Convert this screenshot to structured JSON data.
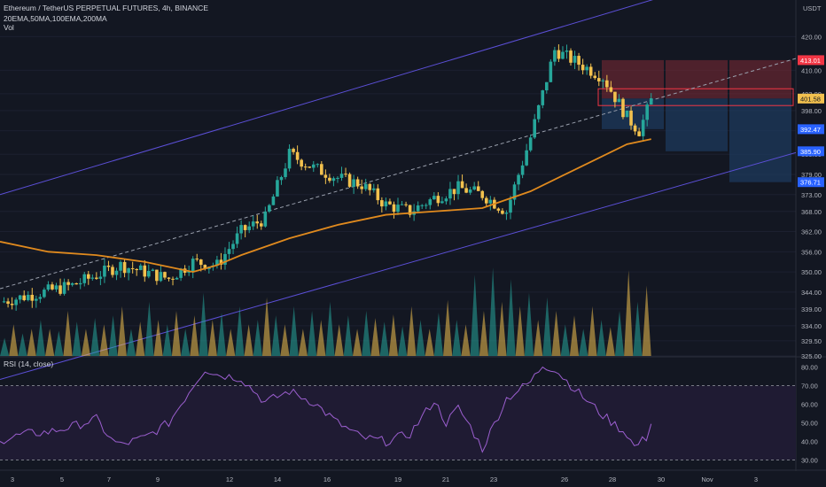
{
  "header": {
    "title": "Ethereum / TetherUS PERPETUAL FUTURES, 4h, BINANCE",
    "indicators": "20EMA,50MA,100EMA,200MA",
    "volume_label": "Vol",
    "currency": "USDT"
  },
  "rsi": {
    "label": "RSI (14, close)",
    "ticks": [
      "80.00",
      "70.00",
      "60.00",
      "50.00",
      "40.00",
      "30.00"
    ],
    "values": [
      80,
      70,
      60,
      50,
      40,
      30
    ],
    "upper": 70,
    "lower": 30
  },
  "colors": {
    "background": "#131722",
    "bull": "#26a69a",
    "bear": "#f2c14e",
    "ma": "#e08a1e",
    "channel": "#5b4fd6",
    "rsi_line": "#9c5fd0",
    "stop_zone": "#7f2a35",
    "target_zone": "#1d3a5c"
  },
  "chart_data": {
    "type": "candlestick",
    "title": "Ethereum / TetherUS PERPETUAL FUTURES, 4h, BINANCE",
    "y_ticks": [
      "420.00",
      "410.00",
      "403.00",
      "398.00",
      "392.00",
      "385.00",
      "379.00",
      "373.00",
      "368.00",
      "362.00",
      "356.00",
      "350.00",
      "344.00",
      "339.00",
      "334.00",
      "329.50",
      "325.00"
    ],
    "y_tick_values": [
      420,
      410,
      403,
      398,
      392,
      385,
      379,
      373,
      368,
      362,
      356,
      350,
      344,
      339,
      334,
      329.5,
      325
    ],
    "x_ticks": [
      "3",
      "5",
      "7",
      "9",
      "12",
      "14",
      "16",
      "19",
      "21",
      "23",
      "26",
      "28",
      "30",
      "Nov",
      "3"
    ],
    "price_labels": [
      {
        "text": "413.01",
        "value": 413.01,
        "color": "#f23645"
      },
      {
        "text": "401.58",
        "value": 401.58,
        "color": "#f2c14e"
      },
      {
        "text": "392.47",
        "value": 392.47,
        "color": "#2962ff"
      },
      {
        "text": "385.90",
        "value": 385.9,
        "color": "#2962ff"
      },
      {
        "text": "376.71",
        "value": 376.71,
        "color": "#2962ff"
      }
    ],
    "price_path": [
      [
        0,
        341
      ],
      [
        3,
        346
      ],
      [
        5,
        352
      ],
      [
        7,
        348
      ],
      [
        8,
        353
      ],
      [
        9,
        352
      ],
      [
        10,
        362
      ],
      [
        11,
        366
      ],
      [
        12,
        385
      ],
      [
        13,
        381
      ],
      [
        14,
        378
      ],
      [
        15,
        376
      ],
      [
        16,
        370
      ],
      [
        17,
        368
      ],
      [
        18,
        372
      ],
      [
        19,
        375
      ],
      [
        20,
        373
      ],
      [
        21,
        368
      ],
      [
        22,
        390
      ],
      [
        23,
        416
      ],
      [
        24,
        412
      ],
      [
        25,
        408
      ],
      [
        26,
        396
      ],
      [
        26.5,
        392
      ],
      [
        27,
        401
      ]
    ],
    "ma_path": [
      [
        0,
        359
      ],
      [
        2,
        356
      ],
      [
        4,
        355
      ],
      [
        6,
        353
      ],
      [
        8,
        350
      ],
      [
        9,
        352
      ],
      [
        10,
        355
      ],
      [
        12,
        360
      ],
      [
        14,
        364
      ],
      [
        16,
        367
      ],
      [
        18,
        368
      ],
      [
        20,
        369
      ],
      [
        22,
        374
      ],
      [
        24,
        381
      ],
      [
        26,
        388
      ],
      [
        27,
        389.5
      ]
    ],
    "volume_heights": [
      0.2,
      0.35,
      0.25,
      0.3,
      0.4,
      0.3,
      0.28,
      0.5,
      0.38,
      0.3,
      0.42,
      0.35,
      0.45,
      0.55,
      0.3,
      0.38,
      0.6,
      0.4,
      0.35,
      0.5,
      0.3,
      0.45,
      0.7,
      0.4,
      0.48,
      0.3,
      0.55,
      0.35,
      0.4,
      0.65,
      0.45,
      0.35,
      0.55,
      0.3,
      0.5,
      0.4,
      0.6,
      0.35,
      0.45,
      0.3,
      0.5,
      0.42,
      0.38,
      0.46,
      0.33,
      0.55,
      0.4,
      0.3,
      0.48,
      0.62,
      0.4,
      0.35,
      0.9,
      0.5,
      0.98,
      0.6,
      0.85,
      0.55,
      0.7,
      0.4,
      0.65,
      0.5,
      0.35,
      0.45,
      0.3,
      0.55,
      0.4,
      0.32,
      0.5,
      0.95,
      0.6,
      0.78
    ],
    "rsi_path": [
      [
        0,
        40
      ],
      [
        1,
        44
      ],
      [
        2,
        45
      ],
      [
        3,
        48
      ],
      [
        4,
        52
      ],
      [
        4.6,
        41
      ],
      [
        5,
        38
      ],
      [
        6,
        42
      ],
      [
        7,
        50
      ],
      [
        8,
        70
      ],
      [
        8.5,
        79
      ],
      [
        9,
        76
      ],
      [
        10,
        74
      ],
      [
        11,
        61
      ],
      [
        12,
        67
      ],
      [
        13,
        61
      ],
      [
        14,
        50
      ],
      [
        15,
        42
      ],
      [
        16,
        40
      ],
      [
        17,
        44
      ],
      [
        18,
        62
      ],
      [
        18.5,
        50
      ],
      [
        19,
        58
      ],
      [
        19.5,
        48
      ],
      [
        20,
        36
      ],
      [
        21,
        63
      ],
      [
        22,
        72
      ],
      [
        22.5,
        81
      ],
      [
        23,
        79
      ],
      [
        24,
        66
      ],
      [
        25,
        54
      ],
      [
        26,
        44
      ],
      [
        26.3,
        37
      ],
      [
        26.8,
        42
      ],
      [
        27,
        51
      ]
    ],
    "x_range": [
      0,
      33
    ],
    "ylim": [
      325,
      423
    ]
  }
}
